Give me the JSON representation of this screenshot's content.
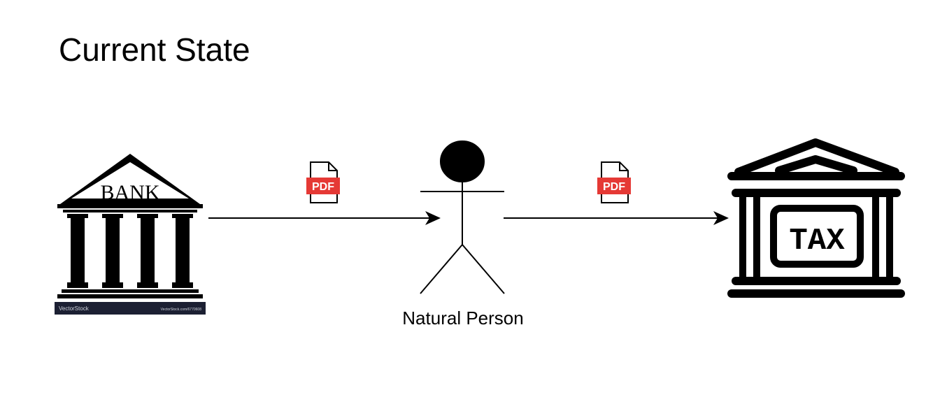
{
  "diagram": {
    "title": "Current State",
    "nodes": {
      "bank": {
        "sign": "BANK",
        "watermark_left": "VectorStock",
        "watermark_right": "VectorStock.com/6770608"
      },
      "person": {
        "label": "Natural Person"
      },
      "tax": {
        "label": "TAX"
      }
    },
    "edges": [
      {
        "from": "bank",
        "to": "person",
        "document": "PDF"
      },
      {
        "from": "person",
        "to": "tax",
        "document": "PDF"
      }
    ],
    "colors": {
      "stroke": "#000000",
      "pdf_badge": "#e53935",
      "background": "#ffffff"
    }
  }
}
